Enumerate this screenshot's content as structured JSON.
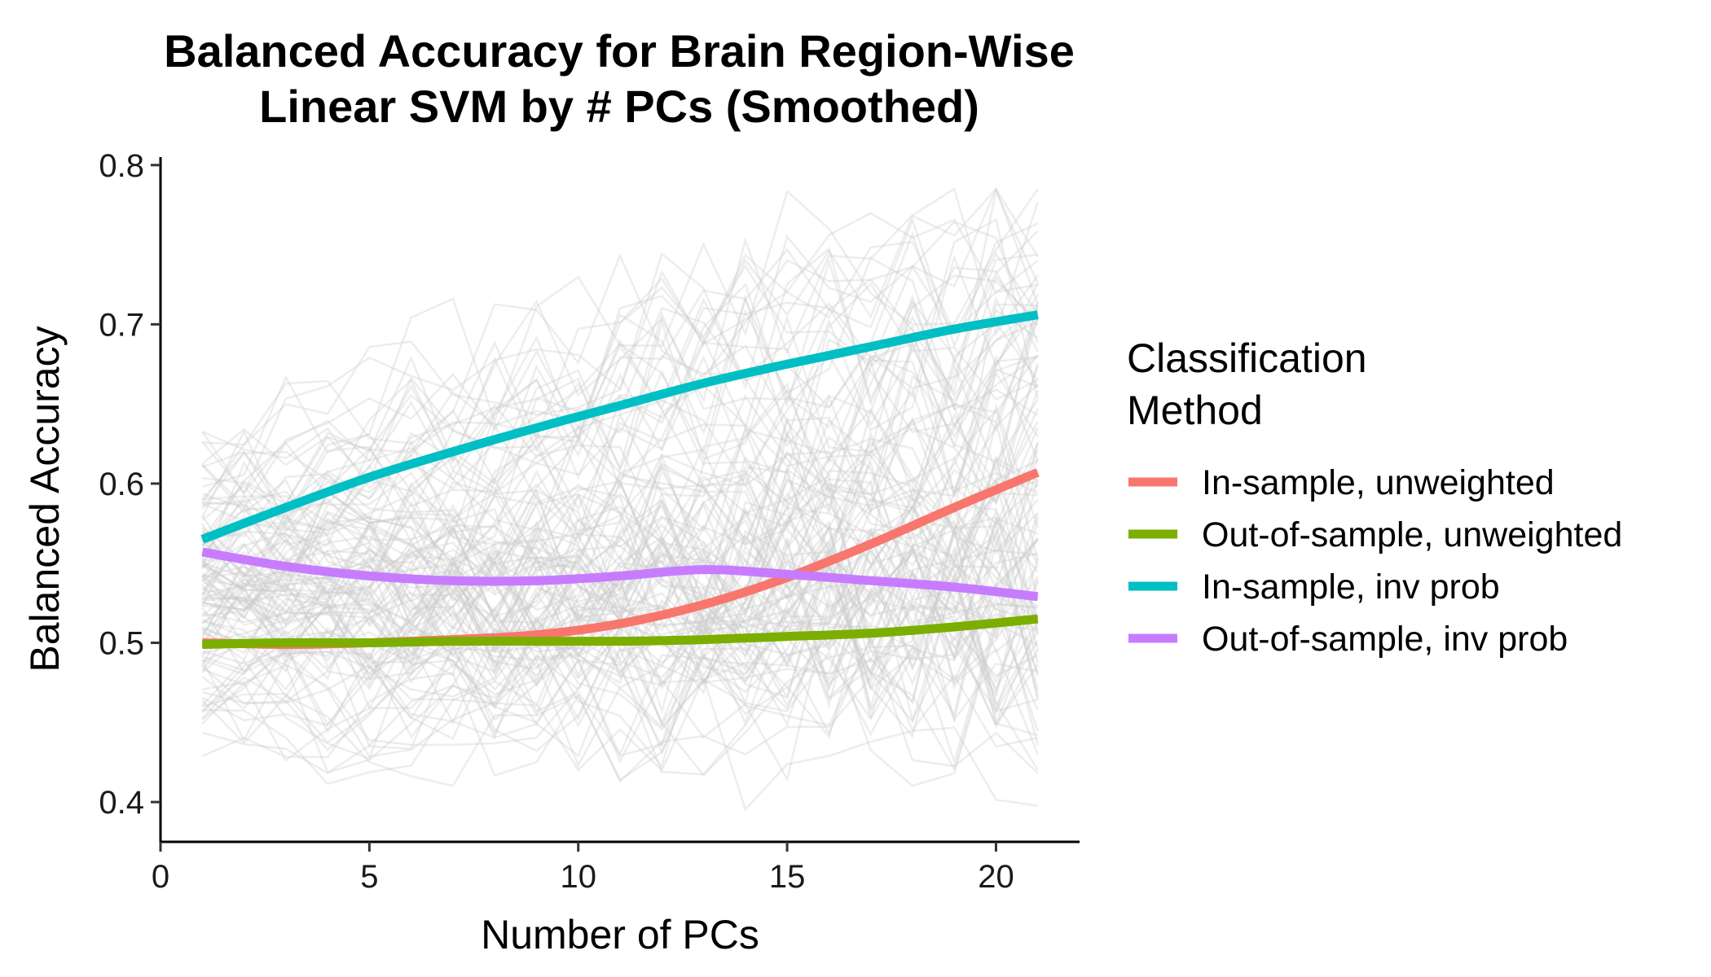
{
  "chart_data": {
    "type": "line",
    "title": [
      "Balanced Accuracy for Brain Region-Wise",
      "Linear SVM by # PCs (Smoothed)"
    ],
    "xlabel": "Number of PCs",
    "ylabel": "Balanced Accuracy",
    "xlim": [
      0,
      22
    ],
    "ylim": [
      0.375,
      0.805
    ],
    "x_ticks": [
      0,
      5,
      10,
      15,
      20
    ],
    "y_ticks": [
      0.4,
      0.5,
      0.6,
      0.7,
      0.8
    ],
    "x_tick_labels": [
      "0",
      "5",
      "10",
      "15",
      "20"
    ],
    "y_tick_labels": [
      "0.4",
      "0.5",
      "0.6",
      "0.7",
      "0.8"
    ],
    "grid": false,
    "legend": {
      "title": [
        "Classification",
        "Method"
      ],
      "position": "right"
    },
    "x": [
      1,
      3,
      5,
      7,
      9,
      11,
      13,
      15,
      17,
      19,
      21
    ],
    "series": [
      {
        "name": "In-sample, unweighted",
        "color": "#F8766D",
        "values": [
          0.5,
          0.499,
          0.5,
          0.502,
          0.505,
          0.512,
          0.524,
          0.541,
          0.562,
          0.585,
          0.607
        ]
      },
      {
        "name": "Out-of-sample, unweighted",
        "color": "#7CAE00",
        "values": [
          0.499,
          0.5,
          0.5,
          0.501,
          0.501,
          0.501,
          0.502,
          0.504,
          0.506,
          0.51,
          0.515
        ]
      },
      {
        "name": "In-sample, inv prob",
        "color": "#00BFC4",
        "values": [
          0.565,
          0.585,
          0.604,
          0.62,
          0.635,
          0.649,
          0.663,
          0.675,
          0.686,
          0.697,
          0.706
        ]
      },
      {
        "name": "Out-of-sample, inv prob",
        "color": "#C77CFF",
        "values": [
          0.557,
          0.548,
          0.542,
          0.539,
          0.539,
          0.542,
          0.546,
          0.543,
          0.539,
          0.535,
          0.529
        ]
      }
    ],
    "background_traces": {
      "color": "#cccccc",
      "opacity": 0.35,
      "description_of_count": 120
    }
  }
}
